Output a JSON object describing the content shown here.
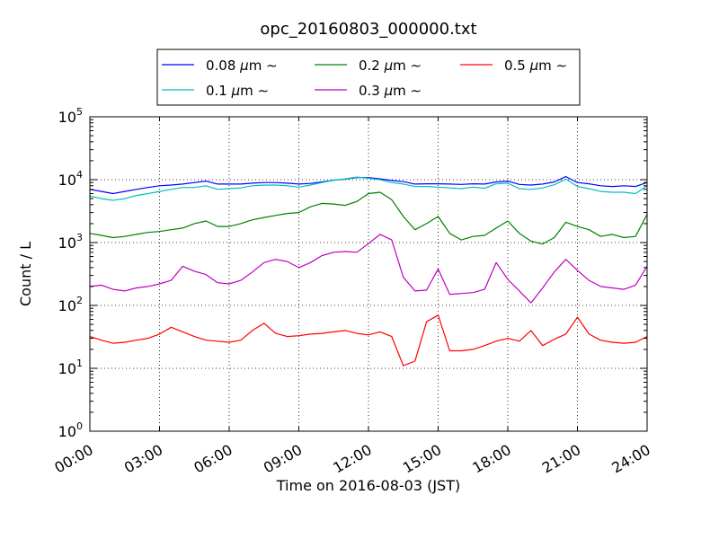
{
  "chart_data": {
    "type": "line",
    "title": "opc_20160803_000000.txt",
    "xlabel": "Time on 2016-08-03 (JST)",
    "ylabel": "Count / L",
    "yscale": "log",
    "ylim": [
      1,
      100000
    ],
    "xlim_hours": [
      0,
      24
    ],
    "grid": true,
    "legend_position": "top-center",
    "x_ticks": [
      "00:00",
      "03:00",
      "06:00",
      "09:00",
      "12:00",
      "15:00",
      "18:00",
      "21:00",
      "24:00"
    ],
    "y_ticks": [
      {
        "base": "10",
        "exp": "0"
      },
      {
        "base": "10",
        "exp": "1"
      },
      {
        "base": "10",
        "exp": "2"
      },
      {
        "base": "10",
        "exp": "3"
      },
      {
        "base": "10",
        "exp": "4"
      },
      {
        "base": "10",
        "exp": "5"
      }
    ],
    "x_hours": [
      0,
      0.5,
      1,
      1.5,
      2,
      2.5,
      3,
      3.5,
      4,
      4.5,
      5,
      5.5,
      6,
      6.5,
      7,
      7.5,
      8,
      8.5,
      9,
      9.5,
      10,
      10.5,
      11,
      11.5,
      12,
      12.5,
      13,
      13.5,
      14,
      14.5,
      15,
      15.5,
      16,
      16.5,
      17,
      17.5,
      18,
      18.5,
      19,
      19.5,
      20,
      20.5,
      21,
      21.5,
      22,
      22.5,
      23,
      23.5,
      24
    ],
    "series": [
      {
        "name": "0.08",
        "color": "#0000ff",
        "values": [
          7000,
          6500,
          6000,
          6500,
          7000,
          7500,
          8000,
          8200,
          8500,
          9000,
          9500,
          8500,
          8500,
          8500,
          8800,
          9000,
          9000,
          8800,
          8500,
          8700,
          9200,
          9800,
          10200,
          10800,
          10800,
          10300,
          9700,
          9300,
          8500,
          8600,
          8600,
          8500,
          8400,
          8600,
          8500,
          9200,
          9500,
          8400,
          8200,
          8500,
          9200,
          11200,
          9000,
          8600,
          8000,
          7800,
          8000,
          7800,
          9000
        ]
      },
      {
        "name": "0.1",
        "color": "#00bfbf",
        "values": [
          5500,
          5000,
          4700,
          5000,
          5600,
          6000,
          6500,
          7000,
          7500,
          7500,
          8000,
          7000,
          7200,
          7400,
          8000,
          8200,
          8200,
          8000,
          7600,
          8200,
          9000,
          9800,
          10300,
          11000,
          10500,
          10000,
          9000,
          8500,
          7800,
          7800,
          7600,
          7400,
          7200,
          7600,
          7300,
          8600,
          8800,
          7200,
          7000,
          7400,
          8300,
          10200,
          7800,
          7200,
          6500,
          6300,
          6300,
          6000,
          8000
        ]
      },
      {
        "name": "0.2",
        "color": "#008000",
        "values": [
          1400,
          1300,
          1200,
          1250,
          1350,
          1450,
          1500,
          1600,
          1700,
          2000,
          2200,
          1800,
          1800,
          2000,
          2300,
          2500,
          2700,
          2900,
          3000,
          3700,
          4200,
          4100,
          3900,
          4500,
          6000,
          6300,
          4800,
          2600,
          1600,
          2000,
          2600,
          1400,
          1100,
          1250,
          1300,
          1700,
          2200,
          1400,
          1050,
          950,
          1200,
          2100,
          1800,
          1600,
          1250,
          1350,
          1200,
          1250,
          2800
        ]
      },
      {
        "name": "0.3",
        "color": "#bf00bf",
        "values": [
          200,
          210,
          180,
          170,
          190,
          200,
          220,
          250,
          420,
          350,
          310,
          230,
          220,
          250,
          340,
          480,
          540,
          500,
          400,
          480,
          620,
          700,
          720,
          700,
          960,
          1350,
          1100,
          280,
          170,
          175,
          380,
          150,
          155,
          160,
          180,
          480,
          260,
          170,
          110,
          190,
          340,
          540,
          360,
          250,
          200,
          190,
          180,
          210,
          420
        ]
      },
      {
        "name": "0.5",
        "color": "#ff0000",
        "values": [
          32,
          28,
          25,
          26,
          28,
          30,
          35,
          45,
          38,
          32,
          28,
          27,
          26,
          28,
          40,
          52,
          36,
          32,
          33,
          35,
          36,
          38,
          40,
          36,
          34,
          38,
          32,
          11,
          13,
          55,
          70,
          19,
          19,
          20,
          23,
          27,
          30,
          27,
          40,
          23,
          29,
          35,
          65,
          35,
          28,
          26,
          25,
          26,
          32
        ]
      }
    ]
  }
}
